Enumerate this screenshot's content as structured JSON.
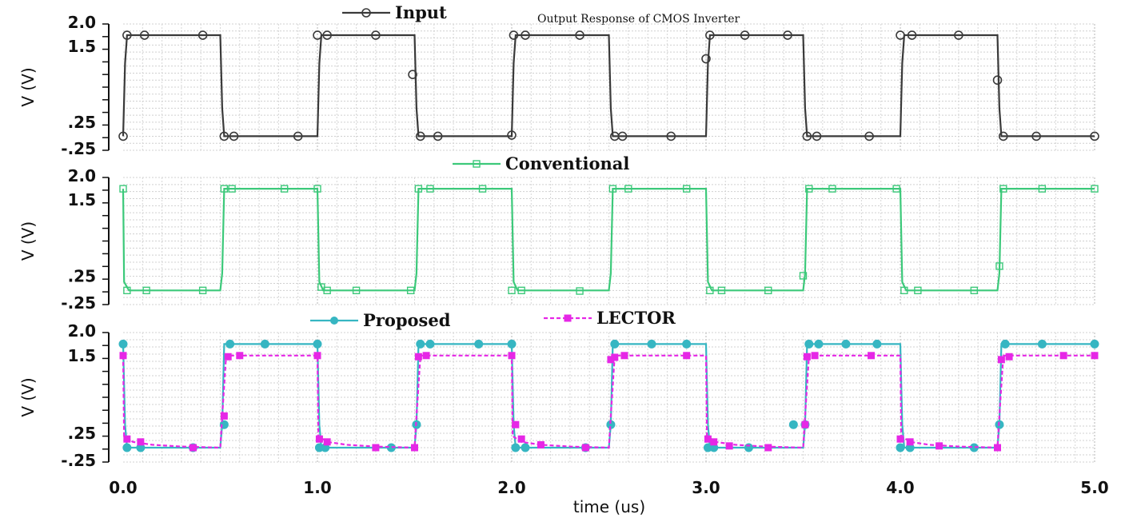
{
  "chart_data": {
    "type": "line",
    "title": "Output Response of CMOS Inverter",
    "xlabel": "time (us)",
    "xlim": [
      0,
      5.0
    ],
    "x_ticks": [
      "0.0",
      "1.0",
      "2.0",
      "3.0",
      "4.0",
      "5.0"
    ],
    "grid": true,
    "panels": [
      {
        "ylabel": "V (V)",
        "ylim": [
          -0.25,
          2.0
        ],
        "y_ticks": [
          "2.0",
          "1.5",
          ".25",
          "-.25"
        ],
        "legend_placement": "top-left",
        "series": [
          {
            "name": "Input",
            "color": "#3a3a3a",
            "marker": "circle-open",
            "x": [
              0,
              0.01,
              0.02,
              0.5,
              0.51,
              0.52,
              1.0,
              1.01,
              1.02,
              1.5,
              1.51,
              1.52,
              2.0,
              2.01,
              2.02,
              2.5,
              2.51,
              2.52,
              3.0,
              3.01,
              3.02,
              3.5,
              3.51,
              3.52,
              4.0,
              4.01,
              4.02,
              4.5,
              4.51,
              4.52,
              5.0
            ],
            "y": [
              0.0,
              1.3,
              1.8,
              1.8,
              0.5,
              0.0,
              0.0,
              1.3,
              1.8,
              1.8,
              0.5,
              0.0,
              0.0,
              1.3,
              1.8,
              1.8,
              0.5,
              0.0,
              0.0,
              1.3,
              1.8,
              1.8,
              0.5,
              0.0,
              0.0,
              1.3,
              1.8,
              1.8,
              0.5,
              0.0,
              0.0
            ],
            "markers_x": [
              0,
              0.02,
              0.11,
              0.41,
              0.52,
              0.57,
              0.9,
              1.0,
              1.05,
              1.3,
              1.49,
              1.53,
              1.62,
              2.0,
              2.01,
              2.07,
              2.35,
              2.53,
              2.57,
              2.82,
              3.0,
              3.02,
              3.2,
              3.42,
              3.52,
              3.57,
              3.84,
              4.0,
              4.06,
              4.3,
              4.5,
              4.53,
              4.7,
              5.0
            ],
            "markers_y": [
              0.0,
              1.8,
              1.8,
              1.8,
              0.0,
              0.0,
              0.0,
              1.8,
              1.8,
              1.8,
              1.1,
              0.0,
              0.0,
              0.02,
              1.8,
              1.8,
              1.8,
              0.0,
              0.0,
              0.0,
              1.38,
              1.8,
              1.8,
              1.8,
              0.0,
              0.0,
              0.0,
              1.8,
              1.8,
              1.8,
              1.0,
              0.0,
              0.0,
              0.0
            ]
          }
        ]
      },
      {
        "ylabel": "V (V)",
        "ylim": [
          -0.25,
          2.0
        ],
        "y_ticks": [
          "2.0",
          "1.5",
          ".25",
          "-.25"
        ],
        "legend_placement": "top-center",
        "series": [
          {
            "name": "Conventional",
            "color": "#3cc97a",
            "marker": "square-open",
            "x": [
              0,
              0.005,
              0.03,
              0.5,
              0.51,
              0.52,
              1.0,
              1.01,
              1.03,
              1.5,
              1.51,
              1.52,
              2.0,
              2.01,
              2.03,
              2.5,
              2.51,
              2.52,
              3.0,
              3.01,
              3.03,
              3.5,
              3.51,
              3.52,
              4.0,
              4.01,
              4.03,
              4.5,
              4.51,
              4.52,
              5.0
            ],
            "y": [
              1.8,
              0.15,
              0.0,
              0.0,
              0.3,
              1.8,
              1.8,
              0.15,
              0.0,
              0.0,
              0.3,
              1.8,
              1.8,
              0.15,
              0.0,
              0.0,
              0.3,
              1.8,
              1.8,
              0.15,
              0.0,
              0.0,
              0.3,
              1.8,
              1.8,
              0.15,
              0.0,
              0.0,
              0.3,
              1.8,
              1.8
            ],
            "markers_x": [
              0,
              0.02,
              0.12,
              0.41,
              0.52,
              0.56,
              0.83,
              1.0,
              1.02,
              1.05,
              1.2,
              1.48,
              1.52,
              1.58,
              1.85,
              2.0,
              2.05,
              2.35,
              2.52,
              2.6,
              2.9,
              3.02,
              3.08,
              3.32,
              3.5,
              3.53,
              3.65,
              3.98,
              4.02,
              4.09,
              4.38,
              4.51,
              4.53,
              4.73,
              5.0
            ],
            "markers_y": [
              1.8,
              0.0,
              0.0,
              0.0,
              1.8,
              1.8,
              1.8,
              1.8,
              0.06,
              0.0,
              0.0,
              0.0,
              1.8,
              1.8,
              1.8,
              0.0,
              0.0,
              -0.01,
              1.8,
              1.8,
              1.8,
              0.0,
              0.0,
              0.0,
              0.26,
              1.8,
              1.8,
              1.8,
              0.0,
              0.0,
              0.0,
              0.43,
              1.8,
              1.8,
              1.8
            ]
          }
        ]
      },
      {
        "ylabel": "V (V)",
        "ylim": [
          -0.25,
          2.0
        ],
        "y_ticks": [
          "2.0",
          "1.5",
          ".25",
          "-.25"
        ],
        "legend_placement": "top-center",
        "series": [
          {
            "name": "Proposed",
            "color": "#36b6c2",
            "marker": "circle-filled",
            "x": [
              0,
              0.01,
              0.02,
              0.5,
              0.51,
              0.52,
              1.0,
              1.01,
              1.02,
              1.5,
              1.51,
              1.52,
              2.0,
              2.01,
              2.02,
              2.5,
              2.51,
              2.52,
              3.0,
              3.01,
              3.02,
              3.5,
              3.51,
              3.52,
              4.0,
              4.01,
              4.02,
              4.5,
              4.51,
              4.52,
              5.0
            ],
            "y": [
              1.8,
              0.4,
              0.0,
              0.0,
              0.4,
              1.8,
              1.8,
              0.4,
              0.0,
              0.0,
              0.4,
              1.8,
              1.8,
              0.4,
              0.0,
              0.0,
              0.4,
              1.8,
              1.8,
              0.4,
              0.0,
              0.0,
              0.4,
              1.8,
              1.8,
              0.4,
              0.0,
              0.0,
              0.4,
              1.8,
              1.8
            ],
            "markers_x": [
              0,
              0.02,
              0.09,
              0.36,
              0.52,
              0.55,
              0.73,
              1.0,
              1.01,
              1.04,
              1.38,
              1.51,
              1.53,
              1.58,
              1.83,
              2.0,
              2.02,
              2.07,
              2.38,
              2.51,
              2.53,
              2.72,
              2.9,
              3.01,
              3.04,
              3.22,
              3.45,
              3.51,
              3.53,
              3.58,
              3.72,
              3.88,
              4.0,
              4.05,
              4.38,
              4.51,
              4.54,
              4.73,
              5.0
            ],
            "markers_y": [
              1.8,
              0.0,
              0.0,
              0.0,
              0.4,
              1.8,
              1.8,
              1.8,
              0.0,
              0.0,
              0.0,
              0.4,
              1.8,
              1.8,
              1.8,
              1.8,
              0.0,
              0.0,
              0.0,
              0.4,
              1.8,
              1.8,
              1.8,
              0.0,
              0.0,
              0.0,
              0.4,
              0.4,
              1.8,
              1.8,
              1.8,
              1.8,
              0.0,
              0.0,
              0.0,
              0.4,
              1.8,
              1.8,
              1.8
            ]
          },
          {
            "name": "LECTOR",
            "color": "#e627e6",
            "marker": "square-filled",
            "x": [
              0,
              0.005,
              0.05,
              0.15,
              0.3,
              0.5,
              0.51,
              0.53,
              1.0,
              1.005,
              1.05,
              1.15,
              1.3,
              1.5,
              1.51,
              1.53,
              2.0,
              2.005,
              2.05,
              2.15,
              2.3,
              2.5,
              2.51,
              2.53,
              3.0,
              3.005,
              3.05,
              3.15,
              3.3,
              3.5,
              3.51,
              3.53,
              4.0,
              4.005,
              4.05,
              4.15,
              4.3,
              4.5,
              4.51,
              4.53,
              5.0
            ],
            "y": [
              1.6,
              0.2,
              0.1,
              0.05,
              0.02,
              0.0,
              0.55,
              1.6,
              1.6,
              0.2,
              0.1,
              0.05,
              0.02,
              0.0,
              0.55,
              1.6,
              1.6,
              0.2,
              0.1,
              0.05,
              0.02,
              0.0,
              0.55,
              1.6,
              1.6,
              0.2,
              0.1,
              0.05,
              0.02,
              0.0,
              0.55,
              1.6,
              1.6,
              0.2,
              0.1,
              0.05,
              0.02,
              0.0,
              0.55,
              1.6,
              1.6
            ],
            "markers_x": [
              0,
              0.02,
              0.09,
              0.36,
              0.52,
              0.54,
              0.6,
              1.0,
              1.01,
              1.05,
              1.3,
              1.5,
              1.52,
              1.56,
              2.0,
              2.02,
              2.05,
              2.15,
              2.38,
              2.51,
              2.53,
              2.58,
              2.9,
              3.01,
              3.04,
              3.12,
              3.32,
              3.51,
              3.52,
              3.56,
              3.85,
              4.0,
              4.05,
              4.2,
              4.5,
              4.52,
              4.56,
              4.84,
              5.0
            ],
            "markers_y": [
              1.6,
              0.15,
              0.1,
              0.0,
              0.55,
              1.58,
              1.6,
              1.6,
              0.15,
              0.1,
              0.0,
              0.0,
              1.58,
              1.6,
              1.6,
              0.4,
              0.15,
              0.05,
              0.0,
              1.53,
              1.57,
              1.6,
              1.6,
              0.15,
              0.1,
              0.03,
              0.0,
              0.4,
              1.58,
              1.6,
              1.6,
              0.15,
              0.1,
              0.03,
              0.0,
              1.53,
              1.58,
              1.6,
              1.6
            ]
          }
        ]
      }
    ]
  }
}
